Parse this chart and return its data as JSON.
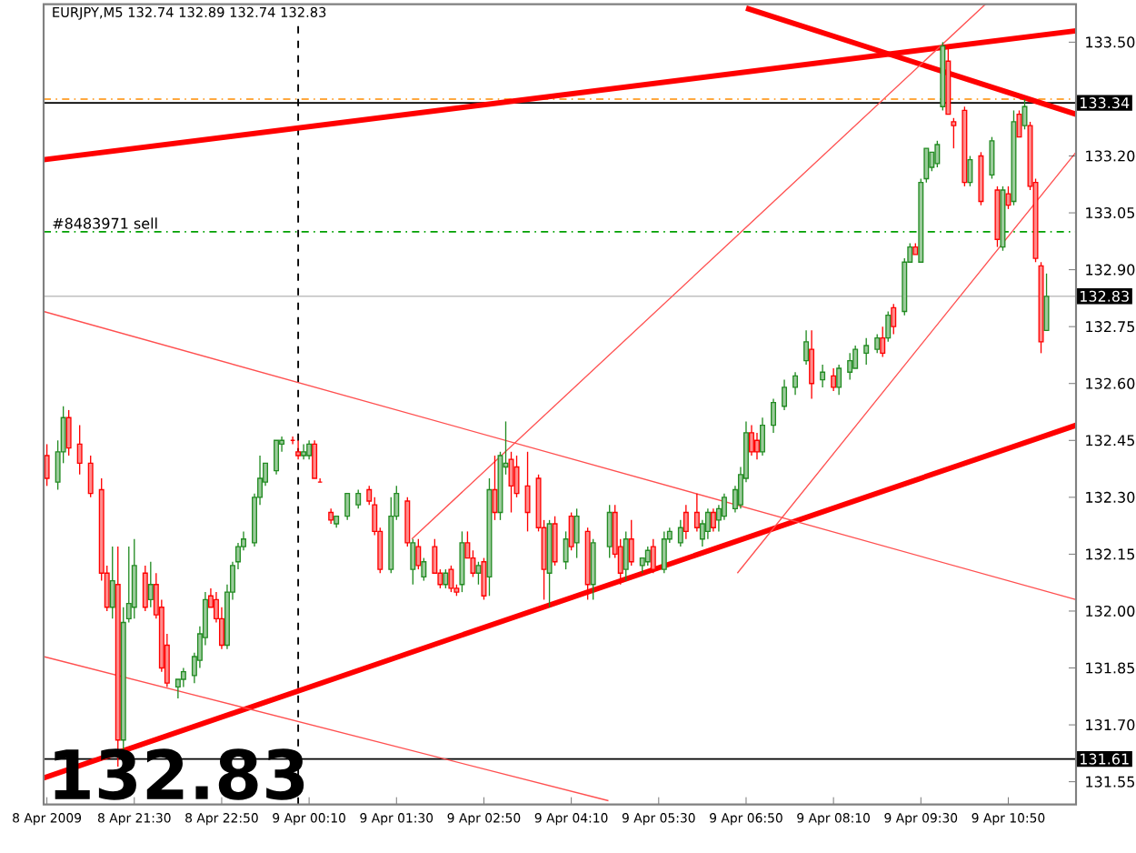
{
  "chart_data": {
    "type": "candlestick",
    "title": "EURJPY,M5 132.74 132.89 132.74 132.83",
    "xlim": [
      "2009-04-08T20:07",
      "2009-04-09T11:52"
    ],
    "ylim": [
      131.49,
      133.6
    ],
    "xticks": [
      {
        "value": "2009-04-08T20:10",
        "label": "8 Apr 2009"
      },
      {
        "value": "2009-04-08T21:30",
        "label": "8 Apr 21:30"
      },
      {
        "value": "2009-04-08T22:50",
        "label": "8 Apr 22:50"
      },
      {
        "value": "2009-04-09T00:10",
        "label": "9 Apr 00:10"
      },
      {
        "value": "2009-04-09T01:30",
        "label": "9 Apr 01:30"
      },
      {
        "value": "2009-04-09T02:50",
        "label": "9 Apr 02:50"
      },
      {
        "value": "2009-04-09T04:10",
        "label": "9 Apr 04:10"
      },
      {
        "value": "2009-04-09T05:30",
        "label": "9 Apr 05:30"
      },
      {
        "value": "2009-04-09T06:50",
        "label": "9 Apr 06:50"
      },
      {
        "value": "2009-04-09T08:10",
        "label": "9 Apr 08:10"
      },
      {
        "value": "2009-04-09T09:30",
        "label": "9 Apr 09:30"
      },
      {
        "value": "2009-04-09T10:50",
        "label": "9 Apr 10:50"
      }
    ],
    "yticks": [
      131.55,
      {
        "value": 131.7,
        "label": "131.70"
      },
      131.85,
      {
        "value": 132.0,
        "label": "132.00"
      },
      132.15,
      {
        "value": 132.3,
        "label": "132.30"
      },
      132.45,
      {
        "value": 132.6,
        "label": "132.60"
      },
      132.75,
      {
        "value": 132.9,
        "label": "132.90"
      },
      133.05,
      {
        "value": 133.2,
        "label": "133.20"
      },
      {
        "value": 133.5,
        "label": "133.50"
      }
    ],
    "ref_lines": [
      {
        "axis": "y",
        "value": 133.35,
        "color": "#ff8c00",
        "line_style": "dashed"
      },
      {
        "axis": "y",
        "value": 133.34,
        "label": "133.34",
        "color": "#000000"
      },
      {
        "axis": "y",
        "value": 133.0,
        "color": "#00a000",
        "line_style": "dashed"
      },
      {
        "axis": "y",
        "value": 132.83,
        "label": "132.83",
        "color": "#c0c0c0"
      },
      {
        "axis": "y",
        "value": 131.61,
        "label": "131.61",
        "color": "#000000"
      },
      {
        "axis": "x",
        "value": "2009-04-09T00:00",
        "color": "#000000",
        "line_style": "dotted"
      }
    ],
    "annotations": [
      {
        "text": "#8483971 sell",
        "x": "2009-04-08T20:12",
        "y": 133.0
      },
      "132.83"
    ],
    "series": [
      {
        "x": [
          "2009-04-08T20:10",
          "2009-04-08T20:20",
          "2009-04-08T20:25",
          "2009-04-08T20:30",
          "2009-04-08T20:40",
          "2009-04-08T20:50",
          "2009-04-08T21:00",
          "2009-04-08T21:05",
          "2009-04-08T21:10",
          "2009-04-08T21:15",
          "2009-04-08T21:20",
          "2009-04-08T21:25",
          "2009-04-08T21:30",
          "2009-04-08T21:40",
          "2009-04-08T21:45",
          "2009-04-08T21:50",
          "2009-04-08T21:55",
          "2009-04-08T22:00",
          "2009-04-08T22:10",
          "2009-04-08T22:15",
          "2009-04-08T22:25",
          "2009-04-08T22:30",
          "2009-04-08T22:35",
          "2009-04-08T22:40",
          "2009-04-08T22:45",
          "2009-04-08T22:50",
          "2009-04-08T22:55",
          "2009-04-08T23:00",
          "2009-04-08T23:05",
          "2009-04-08T23:10",
          "2009-04-08T23:20",
          "2009-04-08T23:25",
          "2009-04-08T23:30",
          "2009-04-08T23:40",
          "2009-04-08T23:45",
          "2009-04-08T23:55",
          "2009-04-09T00:00",
          "2009-04-09T00:05",
          "2009-04-09T00:10",
          "2009-04-09T00:15",
          "2009-04-09T00:20",
          "2009-04-09T00:30",
          "2009-04-09T00:35",
          "2009-04-09T00:45",
          "2009-04-09T00:55",
          "2009-04-09T01:05",
          "2009-04-09T01:10",
          "2009-04-09T01:15",
          "2009-04-09T01:25",
          "2009-04-09T01:30",
          "2009-04-09T01:40",
          "2009-04-09T01:45",
          "2009-04-09T01:50",
          "2009-04-09T01:55",
          "2009-04-09T02:05",
          "2009-04-09T02:10",
          "2009-04-09T02:15",
          "2009-04-09T02:20",
          "2009-04-09T02:25",
          "2009-04-09T02:30",
          "2009-04-09T02:35",
          "2009-04-09T02:40",
          "2009-04-09T02:45",
          "2009-04-09T02:50",
          "2009-04-09T02:55",
          "2009-04-09T03:00",
          "2009-04-09T03:05",
          "2009-04-09T03:10",
          "2009-04-09T03:15",
          "2009-04-09T03:20",
          "2009-04-09T03:30",
          "2009-04-09T03:40",
          "2009-04-09T03:45",
          "2009-04-09T03:50",
          "2009-04-09T03:55",
          "2009-04-09T04:05",
          "2009-04-09T04:10",
          "2009-04-09T04:15",
          "2009-04-09T04:25",
          "2009-04-09T04:30",
          "2009-04-09T04:45",
          "2009-04-09T04:50",
          "2009-04-09T04:55",
          "2009-04-09T05:00",
          "2009-04-09T05:05",
          "2009-04-09T05:15",
          "2009-04-09T05:20",
          "2009-04-09T05:25",
          "2009-04-09T05:35",
          "2009-04-09T05:40",
          "2009-04-09T05:50",
          "2009-04-09T05:55",
          "2009-04-09T06:05",
          "2009-04-09T06:10",
          "2009-04-09T06:15",
          "2009-04-09T06:20",
          "2009-04-09T06:25",
          "2009-04-09T06:30",
          "2009-04-09T06:40",
          "2009-04-09T06:45",
          "2009-04-09T06:50",
          "2009-04-09T06:55",
          "2009-04-09T07:00",
          "2009-04-09T07:05",
          "2009-04-09T07:15",
          "2009-04-09T07:25",
          "2009-04-09T07:35",
          "2009-04-09T07:45",
          "2009-04-09T07:50",
          "2009-04-09T08:00",
          "2009-04-09T08:10",
          "2009-04-09T08:15",
          "2009-04-09T08:25",
          "2009-04-09T08:30",
          "2009-04-09T08:40",
          "2009-04-09T08:50",
          "2009-04-09T08:55",
          "2009-04-09T09:00",
          "2009-04-09T09:05",
          "2009-04-09T09:15",
          "2009-04-09T09:20",
          "2009-04-09T09:25",
          "2009-04-09T09:30",
          "2009-04-09T09:35",
          "2009-04-09T09:40",
          "2009-04-09T09:45",
          "2009-04-09T09:50",
          "2009-04-09T09:55",
          "2009-04-09T10:00",
          "2009-04-09T10:10",
          "2009-04-09T10:15",
          "2009-04-09T10:25",
          "2009-04-09T10:35",
          "2009-04-09T10:40",
          "2009-04-09T10:45",
          "2009-04-09T10:50",
          "2009-04-09T10:55",
          "2009-04-09T11:00",
          "2009-04-09T11:05",
          "2009-04-09T11:10",
          "2009-04-09T11:15",
          "2009-04-09T11:20",
          "2009-04-09T11:25"
        ],
        "ohlc": [
          [
            132.41,
            132.44,
            132.33,
            132.35
          ],
          [
            132.34,
            132.45,
            132.32,
            132.42
          ],
          [
            132.42,
            132.54,
            132.39,
            132.51
          ],
          [
            132.51,
            132.53,
            132.41,
            132.43
          ],
          [
            132.44,
            132.49,
            132.36,
            132.39
          ],
          [
            132.39,
            132.41,
            132.3,
            132.31
          ],
          [
            132.32,
            132.35,
            132.08,
            132.1
          ],
          [
            132.1,
            132.12,
            132.0,
            132.01
          ],
          [
            132.01,
            132.17,
            131.98,
            132.08
          ],
          [
            132.07,
            132.17,
            131.59,
            131.66
          ],
          [
            131.66,
            132.01,
            131.63,
            131.97
          ],
          [
            131.98,
            132.17,
            131.97,
            132.02
          ],
          [
            132.01,
            132.19,
            131.98,
            132.12
          ],
          [
            132.1,
            132.12,
            132.0,
            132.01
          ],
          [
            132.03,
            132.13,
            132.01,
            132.07
          ],
          [
            132.07,
            132.1,
            131.98,
            131.99
          ],
          [
            132.01,
            132.03,
            131.84,
            131.85
          ],
          [
            131.91,
            131.94,
            131.8,
            131.81
          ],
          [
            131.8,
            131.82,
            131.77,
            131.82
          ],
          [
            131.82,
            131.85,
            131.8,
            131.84
          ],
          [
            131.83,
            131.89,
            131.81,
            131.88
          ],
          [
            131.87,
            131.96,
            131.85,
            131.94
          ],
          [
            131.93,
            132.05,
            131.91,
            132.03
          ],
          [
            132.04,
            132.06,
            132.01,
            132.01
          ],
          [
            132.03,
            132.05,
            131.97,
            131.98
          ],
          [
            131.98,
            132.01,
            131.9,
            131.91
          ],
          [
            131.91,
            132.07,
            131.9,
            132.05
          ],
          [
            132.05,
            132.13,
            132.03,
            132.12
          ],
          [
            132.13,
            132.18,
            132.11,
            132.17
          ],
          [
            132.17,
            132.21,
            132.16,
            132.19
          ],
          [
            132.18,
            132.31,
            132.17,
            132.3
          ],
          [
            132.3,
            132.41,
            132.28,
            132.35
          ],
          [
            132.34,
            132.39,
            132.33,
            132.39
          ],
          [
            132.37,
            132.45,
            132.36,
            132.45
          ],
          [
            132.44,
            132.46,
            132.42,
            132.45
          ],
          [
            132.45,
            132.46,
            132.44,
            132.45
          ],
          [
            132.42,
            132.45,
            132.4,
            132.41
          ],
          [
            132.41,
            132.44,
            132.4,
            132.42
          ],
          [
            132.41,
            132.45,
            132.4,
            132.44
          ],
          [
            132.44,
            132.45,
            132.35,
            132.35
          ],
          [
            132.34,
            132.35,
            132.34,
            132.34
          ],
          [
            132.26,
            132.27,
            132.23,
            132.24
          ],
          [
            132.23,
            132.25,
            132.22,
            132.25
          ],
          [
            132.25,
            132.31,
            132.24,
            132.31
          ],
          [
            132.28,
            132.32,
            132.27,
            132.31
          ],
          [
            132.32,
            132.33,
            132.28,
            132.29
          ],
          [
            132.28,
            132.3,
            132.2,
            132.21
          ],
          [
            132.21,
            132.22,
            132.1,
            132.11
          ],
          [
            132.11,
            132.3,
            132.1,
            132.25
          ],
          [
            132.25,
            132.33,
            132.24,
            132.31
          ],
          [
            132.29,
            132.3,
            132.17,
            132.18
          ],
          [
            132.11,
            132.19,
            132.07,
            132.18
          ],
          [
            132.17,
            132.19,
            132.11,
            132.12
          ],
          [
            132.09,
            132.14,
            132.08,
            132.13
          ],
          [
            132.17,
            132.19,
            132.1,
            132.1
          ],
          [
            132.1,
            132.11,
            132.06,
            132.07
          ],
          [
            132.07,
            132.11,
            132.06,
            132.1
          ],
          [
            132.11,
            132.12,
            132.05,
            132.06
          ],
          [
            132.06,
            132.07,
            132.04,
            132.05
          ],
          [
            132.07,
            132.21,
            132.05,
            132.18
          ],
          [
            132.18,
            132.21,
            132.14,
            132.14
          ],
          [
            132.14,
            132.16,
            132.09,
            132.1
          ],
          [
            132.1,
            132.13,
            132.07,
            132.12
          ],
          [
            132.13,
            132.14,
            132.03,
            132.04
          ],
          [
            132.09,
            132.35,
            132.04,
            132.32
          ],
          [
            132.32,
            132.41,
            132.24,
            132.26
          ],
          [
            132.26,
            132.42,
            132.24,
            132.41
          ],
          [
            132.38,
            132.5,
            132.36,
            132.39
          ],
          [
            132.4,
            132.42,
            132.26,
            132.33
          ],
          [
            132.38,
            132.41,
            132.3,
            132.31
          ],
          [
            132.33,
            132.42,
            132.21,
            132.26
          ],
          [
            132.35,
            132.36,
            132.21,
            132.22
          ],
          [
            132.22,
            132.24,
            132.03,
            132.11
          ],
          [
            132.1,
            132.24,
            132.01,
            132.23
          ],
          [
            132.23,
            132.25,
            132.12,
            132.13
          ],
          [
            132.13,
            132.21,
            132.11,
            132.19
          ],
          [
            132.25,
            132.26,
            132.16,
            132.17
          ],
          [
            132.18,
            132.27,
            132.14,
            132.25
          ],
          [
            132.21,
            132.22,
            132.03,
            132.07
          ],
          [
            132.07,
            132.19,
            132.03,
            132.18
          ],
          [
            132.17,
            132.28,
            132.14,
            132.26
          ],
          [
            132.26,
            132.28,
            132.14,
            132.15
          ],
          [
            132.17,
            132.19,
            132.07,
            132.1
          ],
          [
            132.11,
            132.21,
            132.08,
            132.19
          ],
          [
            132.19,
            132.24,
            132.12,
            132.13
          ],
          [
            132.12,
            132.14,
            132.1,
            132.14
          ],
          [
            132.13,
            132.17,
            132.12,
            132.16
          ],
          [
            132.17,
            132.19,
            132.1,
            132.11
          ],
          [
            132.11,
            132.21,
            132.1,
            132.19
          ],
          [
            132.19,
            132.22,
            132.18,
            132.21
          ],
          [
            132.18,
            132.24,
            132.17,
            132.22
          ],
          [
            132.26,
            132.28,
            132.19,
            132.21
          ],
          [
            132.26,
            132.31,
            132.21,
            132.22
          ],
          [
            132.19,
            132.24,
            132.17,
            132.23
          ],
          [
            132.21,
            132.27,
            132.19,
            132.26
          ],
          [
            132.26,
            132.27,
            132.21,
            132.22
          ],
          [
            132.24,
            132.28,
            132.21,
            132.27
          ],
          [
            132.25,
            132.31,
            132.24,
            132.3
          ],
          [
            132.27,
            132.33,
            132.26,
            132.32
          ],
          [
            132.28,
            132.38,
            132.27,
            132.36
          ],
          [
            132.35,
            132.5,
            132.34,
            132.47
          ],
          [
            132.47,
            132.49,
            132.41,
            132.42
          ],
          [
            132.45,
            132.47,
            132.4,
            132.42
          ],
          [
            132.42,
            132.51,
            132.41,
            132.49
          ],
          [
            132.49,
            132.56,
            132.47,
            132.55
          ],
          [
            132.54,
            132.61,
            132.53,
            132.59
          ],
          [
            132.59,
            132.63,
            132.57,
            132.62
          ],
          [
            132.66,
            132.74,
            132.65,
            132.71
          ],
          [
            132.69,
            132.74,
            132.56,
            132.6
          ],
          [
            132.61,
            132.65,
            132.59,
            132.63
          ],
          [
            132.62,
            132.64,
            132.58,
            132.59
          ],
          [
            132.59,
            132.65,
            132.57,
            132.64
          ],
          [
            132.63,
            132.68,
            132.61,
            132.66
          ],
          [
            132.64,
            132.7,
            132.64,
            132.69
          ],
          [
            132.68,
            132.72,
            132.65,
            132.7
          ],
          [
            132.69,
            132.73,
            132.68,
            132.72
          ],
          [
            132.72,
            132.75,
            132.67,
            132.68
          ],
          [
            132.72,
            132.79,
            132.71,
            132.78
          ],
          [
            132.8,
            132.81,
            132.73,
            132.75
          ],
          [
            132.79,
            132.93,
            132.78,
            132.92
          ],
          [
            132.92,
            132.97,
            132.92,
            132.96
          ],
          [
            132.96,
            132.97,
            132.94,
            132.94
          ],
          [
            132.92,
            133.14,
            132.92,
            133.13
          ],
          [
            133.14,
            133.22,
            133.13,
            133.22
          ],
          [
            133.17,
            133.21,
            133.16,
            133.21
          ],
          [
            133.18,
            133.24,
            133.17,
            133.23
          ],
          [
            133.33,
            133.5,
            133.32,
            133.49
          ],
          [
            133.45,
            133.49,
            133.31,
            133.31
          ],
          [
            133.29,
            133.3,
            133.22,
            133.28
          ],
          [
            133.32,
            133.33,
            133.12,
            133.13
          ],
          [
            133.13,
            133.2,
            133.12,
            133.19
          ],
          [
            133.2,
            133.21,
            133.07,
            133.08
          ],
          [
            133.15,
            133.25,
            133.14,
            133.24
          ],
          [
            133.11,
            133.12,
            132.96,
            132.98
          ],
          [
            132.96,
            133.12,
            132.95,
            133.11
          ],
          [
            133.1,
            133.12,
            133.06,
            133.07
          ],
          [
            133.08,
            133.32,
            133.07,
            133.29
          ],
          [
            133.31,
            133.32,
            133.25,
            133.25
          ],
          [
            133.28,
            133.35,
            133.27,
            133.33
          ],
          [
            133.28,
            133.29,
            133.11,
            133.12
          ],
          [
            133.13,
            133.14,
            132.92,
            132.93
          ],
          [
            132.91,
            132.92,
            132.68,
            132.71
          ],
          [
            132.74,
            132.89,
            132.74,
            132.83
          ]
        ],
        "colors": [
          "#ff0000",
          "#228b22",
          "#228b22",
          "#ff0000",
          "#ff0000",
          "#ff0000",
          "#ff0000",
          "#ff0000",
          "#228b22",
          "#ff0000",
          "#228b22",
          "#228b22",
          "#228b22",
          "#ff0000",
          "#228b22",
          "#ff0000",
          "#ff0000",
          "#ff0000",
          "#228b22",
          "#228b22",
          "#228b22",
          "#228b22",
          "#228b22",
          "#ff0000",
          "#ff0000",
          "#ff0000",
          "#228b22",
          "#228b22",
          "#228b22",
          "#228b22",
          "#228b22",
          "#228b22",
          "#228b22",
          "#228b22",
          "#228b22",
          "#ff0000",
          "#ff0000",
          "#228b22",
          "#228b22",
          "#ff0000",
          "#ff0000",
          "#ff0000",
          "#228b22",
          "#228b22",
          "#228b22",
          "#ff0000",
          "#ff0000",
          "#ff0000",
          "#228b22",
          "#228b22",
          "#ff0000",
          "#228b22",
          "#ff0000",
          "#228b22",
          "#ff0000",
          "#ff0000",
          "#228b22",
          "#ff0000",
          "#ff0000",
          "#228b22",
          "#ff0000",
          "#ff0000",
          "#228b22",
          "#ff0000",
          "#228b22",
          "#ff0000",
          "#228b22",
          "#228b22",
          "#ff0000",
          "#ff0000",
          "#ff0000",
          "#ff0000",
          "#ff0000",
          "#228b22",
          "#ff0000",
          "#228b22",
          "#ff0000",
          "#228b22",
          "#ff0000",
          "#228b22",
          "#228b22",
          "#ff0000",
          "#ff0000",
          "#228b22",
          "#ff0000",
          "#228b22",
          "#228b22",
          "#ff0000",
          "#228b22",
          "#228b22",
          "#228b22",
          "#ff0000",
          "#ff0000",
          "#228b22",
          "#228b22",
          "#ff0000",
          "#228b22",
          "#228b22",
          "#228b22",
          "#228b22",
          "#228b22",
          "#ff0000",
          "#ff0000",
          "#228b22",
          "#228b22",
          "#228b22",
          "#228b22",
          "#228b22",
          "#ff0000",
          "#228b22",
          "#ff0000",
          "#228b22",
          "#228b22",
          "#228b22",
          "#228b22",
          "#228b22",
          "#ff0000",
          "#228b22",
          "#ff0000",
          "#228b22",
          "#228b22",
          "#ff0000",
          "#228b22",
          "#228b22",
          "#228b22",
          "#228b22",
          "#228b22",
          "#ff0000",
          "#ff0000",
          "#ff0000",
          "#228b22",
          "#ff0000",
          "#228b22",
          "#ff0000",
          "#228b22",
          "#ff0000",
          "#228b22",
          "#ff0000",
          "#228b22",
          "#ff0000",
          "#ff0000",
          "#ff0000",
          "#228b22"
        ]
      },
      {
        "type": "line",
        "x": [
          "2009-04-08T20:07",
          "2009-04-09T11:52"
        ],
        "values": [
          133.19,
          133.53
        ],
        "color": "#ff0000"
      },
      {
        "type": "line",
        "x": [
          "2009-04-09T06:50",
          "2009-04-09T11:52"
        ],
        "values": [
          133.59,
          133.31
        ],
        "color": "#ff0000"
      },
      {
        "type": "line",
        "x": [
          "2009-04-08T20:07",
          "2009-04-09T11:52"
        ],
        "values": [
          131.56,
          132.49
        ],
        "color": "#ff0000"
      },
      {
        "type": "line",
        "x": [
          "2009-04-08T20:07",
          "2009-04-09T11:52"
        ],
        "values": [
          132.79,
          132.03
        ],
        "color": "#ff5050"
      },
      {
        "type": "line",
        "x": [
          "2009-04-08T20:07",
          "2009-04-09T04:44"
        ],
        "values": [
          131.88,
          131.5
        ],
        "color": "#ff5050"
      },
      {
        "type": "line",
        "x": [
          "2009-04-09T01:44",
          "2009-04-09T10:29"
        ],
        "values": [
          132.19,
          133.6
        ],
        "color": "#ff5050"
      },
      {
        "type": "line",
        "x": [
          "2009-04-09T06:42",
          "2009-04-09T11:52"
        ],
        "values": [
          132.1,
          133.21
        ],
        "color": "#ff5050"
      }
    ]
  }
}
